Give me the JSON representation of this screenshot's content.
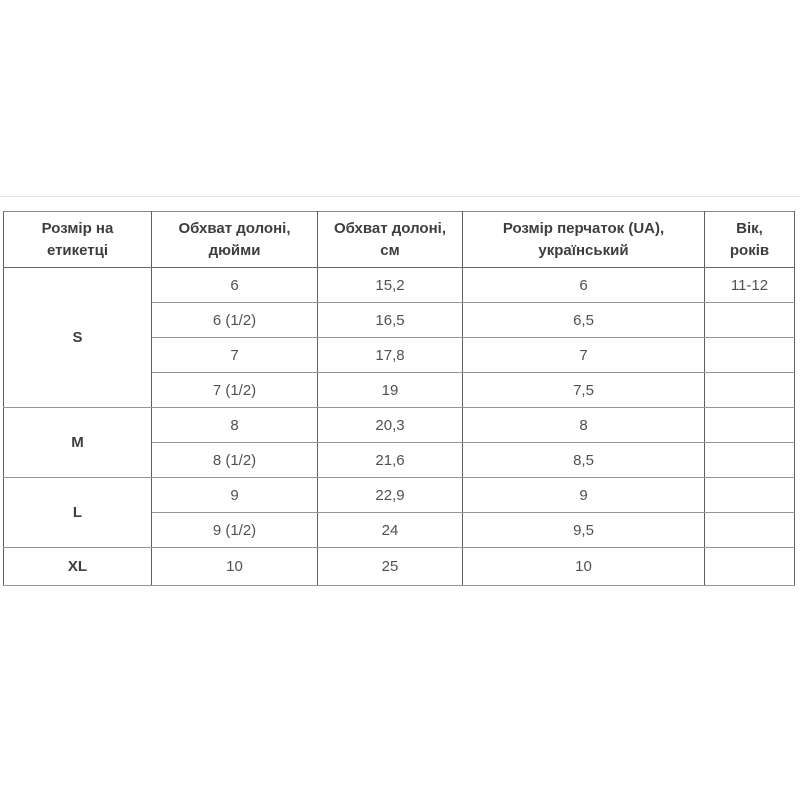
{
  "page": {
    "background": "#ffffff",
    "divider_color": "#e2e2e2"
  },
  "colors": {
    "header_text": "#3e3e3e",
    "body_text": "#515151",
    "vertical_border": "#5e5e5e",
    "horizontal_border": "#959595"
  },
  "size_table": {
    "headers": [
      {
        "text": "Розмір на\nетикетці"
      },
      {
        "text": "Обхват долоні,\nдюйми"
      },
      {
        "text": "Обхват долоні,\nсм"
      },
      {
        "text": "Розмір перчаток (UA),\nукраїнський"
      },
      {
        "text": "Вік,\nроків"
      }
    ],
    "groups": [
      {
        "label": "S",
        "rows": [
          {
            "inches": "6",
            "cm": "15,2",
            "ua": "6",
            "age": "11-12"
          },
          {
            "inches": "6 (1/2)",
            "cm": "16,5",
            "ua": "6,5",
            "age": ""
          },
          {
            "inches": "7",
            "cm": "17,8",
            "ua": "7",
            "age": ""
          },
          {
            "inches": "7 (1/2)",
            "cm": "19",
            "ua": "7,5",
            "age": ""
          }
        ]
      },
      {
        "label": "M",
        "rows": [
          {
            "inches": "8",
            "cm": "20,3",
            "ua": "8",
            "age": ""
          },
          {
            "inches": "8 (1/2)",
            "cm": "21,6",
            "ua": "8,5",
            "age": ""
          }
        ]
      },
      {
        "label": "L",
        "rows": [
          {
            "inches": "9",
            "cm": "22,9",
            "ua": "9",
            "age": ""
          },
          {
            "inches": "9 (1/2)",
            "cm": "24",
            "ua": "9,5",
            "age": ""
          }
        ]
      },
      {
        "label": "XL",
        "rows": [
          {
            "inches": "10",
            "cm": "25",
            "ua": "10",
            "age": ""
          }
        ]
      }
    ]
  },
  "chart_data": {
    "type": "table",
    "title": "",
    "columns": [
      "Розмір на етикетці",
      "Обхват долоні, дюйми",
      "Обхват долоні, см",
      "Розмір перчаток (UA), український",
      "Вік, років"
    ],
    "rows": [
      [
        "S",
        "6",
        "15,2",
        "6",
        "11-12"
      ],
      [
        "S",
        "6 (1/2)",
        "16,5",
        "6,5",
        ""
      ],
      [
        "S",
        "7",
        "17,8",
        "7",
        ""
      ],
      [
        "S",
        "7 (1/2)",
        "19",
        "7,5",
        ""
      ],
      [
        "M",
        "8",
        "20,3",
        "8",
        ""
      ],
      [
        "M",
        "8 (1/2)",
        "21,6",
        "8,5",
        ""
      ],
      [
        "L",
        "9",
        "22,9",
        "9",
        ""
      ],
      [
        "L",
        "9 (1/2)",
        "24",
        "9,5",
        ""
      ],
      [
        "XL",
        "10",
        "25",
        "10",
        ""
      ]
    ],
    "row_groups": [
      {
        "label": "S",
        "span": 4
      },
      {
        "label": "M",
        "span": 2
      },
      {
        "label": "L",
        "span": 2
      },
      {
        "label": "XL",
        "span": 1
      }
    ],
    "layout_hints": {
      "grid": "on",
      "merged_first_column": true,
      "empty_age_cells_below_first_row": true
    }
  }
}
